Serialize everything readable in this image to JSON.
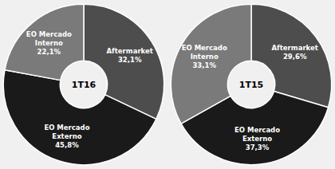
{
  "chart_data": [
    {
      "type": "pie",
      "title": "1T16",
      "categories": [
        "Aftermarket",
        "EO Mercado\nExterno",
        "EO Mercado\nInterno"
      ],
      "values": [
        32.1,
        45.8,
        22.1
      ],
      "value_labels": [
        "32,1%",
        "45,8%",
        "22,1%"
      ],
      "colors": [
        "#4d4d4d",
        "#1a1a1a",
        "#7a7a7a"
      ],
      "data_labels": true
    },
    {
      "type": "pie",
      "title": "1T15",
      "categories": [
        "Aftermarket",
        "EO Mercado\nExterno",
        "EO Mercado\nInterno"
      ],
      "values": [
        29.6,
        37.3,
        33.1
      ],
      "value_labels": [
        "29,6%",
        "37,3%",
        "33,1%"
      ],
      "colors": [
        "#4d4d4d",
        "#1a1a1a",
        "#7a7a7a"
      ],
      "data_labels": true
    }
  ]
}
